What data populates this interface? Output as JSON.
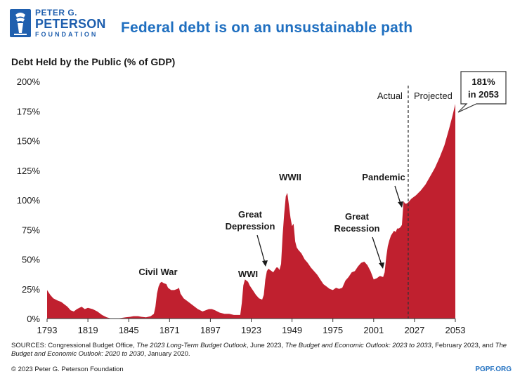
{
  "brand": {
    "line1": "PETER G.",
    "line2": "PETERSON",
    "line3": "FOUNDATION",
    "color": "#1f5fae"
  },
  "title": "Federal debt is on an unsustainable path",
  "chart_data": {
    "type": "area",
    "title": "Federal debt is on an unsustainable path",
    "subtitle": "Debt Held by the Public (% of GDP)",
    "xlabel": "",
    "ylabel": "",
    "xlim": [
      1793,
      2053
    ],
    "ylim": [
      0,
      200
    ],
    "x_ticks": [
      1793,
      1819,
      1845,
      1871,
      1897,
      1923,
      1949,
      1975,
      2001,
      2027,
      2053
    ],
    "y_ticks": [
      0,
      25,
      50,
      75,
      100,
      125,
      150,
      175,
      200
    ],
    "y_tick_labels": [
      "0%",
      "25%",
      "50%",
      "75%",
      "100%",
      "125%",
      "150%",
      "175%",
      "200%"
    ],
    "grid": false,
    "fill_color": "#c0202f",
    "divider_year": 2023,
    "divider_labels": {
      "left": "Actual",
      "right": "Projected"
    },
    "callout": {
      "line1": "181%",
      "line2": "in 2053"
    },
    "series": [
      {
        "values": [
          [
            1793,
            24
          ],
          [
            1795,
            20
          ],
          [
            1797,
            17
          ],
          [
            1800,
            15
          ],
          [
            1802,
            14
          ],
          [
            1804,
            12
          ],
          [
            1806,
            10
          ],
          [
            1808,
            7
          ],
          [
            1810,
            6
          ],
          [
            1812,
            8
          ],
          [
            1815,
            10
          ],
          [
            1817,
            8
          ],
          [
            1819,
            9
          ],
          [
            1822,
            8
          ],
          [
            1825,
            6
          ],
          [
            1828,
            3
          ],
          [
            1831,
            1
          ],
          [
            1834,
            0
          ],
          [
            1837,
            0
          ],
          [
            1840,
            0.5
          ],
          [
            1843,
            1
          ],
          [
            1846,
            1.5
          ],
          [
            1848,
            2
          ],
          [
            1851,
            2
          ],
          [
            1853,
            1.5
          ],
          [
            1856,
            1
          ],
          [
            1859,
            2
          ],
          [
            1861,
            4
          ],
          [
            1862,
            10
          ],
          [
            1863,
            21
          ],
          [
            1864,
            27
          ],
          [
            1865,
            30
          ],
          [
            1866,
            31
          ],
          [
            1867,
            30
          ],
          [
            1869,
            29
          ],
          [
            1870,
            26
          ],
          [
            1872,
            24
          ],
          [
            1874,
            24
          ],
          [
            1876,
            25
          ],
          [
            1877,
            26
          ],
          [
            1878,
            21
          ],
          [
            1880,
            17
          ],
          [
            1883,
            14
          ],
          [
            1886,
            11
          ],
          [
            1889,
            8
          ],
          [
            1892,
            6
          ],
          [
            1894,
            7
          ],
          [
            1896,
            8
          ],
          [
            1898,
            8
          ],
          [
            1900,
            7
          ],
          [
            1903,
            5
          ],
          [
            1906,
            4
          ],
          [
            1909,
            4
          ],
          [
            1912,
            3
          ],
          [
            1915,
            3
          ],
          [
            1916,
            3
          ],
          [
            1917,
            13
          ],
          [
            1918,
            28
          ],
          [
            1919,
            33
          ],
          [
            1920,
            32
          ],
          [
            1921,
            31
          ],
          [
            1922,
            28
          ],
          [
            1923,
            26
          ],
          [
            1924,
            24
          ],
          [
            1926,
            20
          ],
          [
            1928,
            17
          ],
          [
            1930,
            16
          ],
          [
            1931,
            20
          ],
          [
            1932,
            33
          ],
          [
            1933,
            40
          ],
          [
            1934,
            42
          ],
          [
            1935,
            41
          ],
          [
            1936,
            40
          ],
          [
            1937,
            39
          ],
          [
            1938,
            41
          ],
          [
            1939,
            43
          ],
          [
            1940,
            43
          ],
          [
            1941,
            41
          ],
          [
            1942,
            46
          ],
          [
            1943,
            70
          ],
          [
            1944,
            88
          ],
          [
            1945,
            103
          ],
          [
            1946,
            106
          ],
          [
            1947,
            96
          ],
          [
            1948,
            85
          ],
          [
            1949,
            78
          ],
          [
            1950,
            80
          ],
          [
            1951,
            65
          ],
          [
            1952,
            60
          ],
          [
            1953,
            58
          ],
          [
            1955,
            55
          ],
          [
            1957,
            50
          ],
          [
            1959,
            47
          ],
          [
            1961,
            43
          ],
          [
            1963,
            40
          ],
          [
            1965,
            37
          ],
          [
            1967,
            33
          ],
          [
            1969,
            29
          ],
          [
            1971,
            27
          ],
          [
            1973,
            25
          ],
          [
            1975,
            24
          ],
          [
            1977,
            26
          ],
          [
            1979,
            25
          ],
          [
            1981,
            26
          ],
          [
            1983,
            32
          ],
          [
            1985,
            35
          ],
          [
            1987,
            39
          ],
          [
            1989,
            40
          ],
          [
            1991,
            44
          ],
          [
            1993,
            47
          ],
          [
            1995,
            48
          ],
          [
            1997,
            45
          ],
          [
            1999,
            40
          ],
          [
            2001,
            33
          ],
          [
            2003,
            34
          ],
          [
            2005,
            36
          ],
          [
            2007,
            35
          ],
          [
            2008,
            39
          ],
          [
            2009,
            52
          ],
          [
            2010,
            61
          ],
          [
            2011,
            66
          ],
          [
            2012,
            70
          ],
          [
            2013,
            72
          ],
          [
            2014,
            74
          ],
          [
            2015,
            73
          ],
          [
            2016,
            76
          ],
          [
            2017,
            76
          ],
          [
            2018,
            77
          ],
          [
            2019,
            79
          ],
          [
            2020,
            99
          ],
          [
            2021,
            97
          ],
          [
            2022,
            97
          ],
          [
            2023,
            98
          ],
          [
            2025,
            101
          ],
          [
            2028,
            104
          ],
          [
            2031,
            108
          ],
          [
            2034,
            113
          ],
          [
            2037,
            120
          ],
          [
            2040,
            127
          ],
          [
            2043,
            136
          ],
          [
            2046,
            146
          ],
          [
            2049,
            160
          ],
          [
            2051,
            170
          ],
          [
            2053,
            181
          ]
        ]
      }
    ],
    "annotations": [
      {
        "text": "Civil War"
      },
      {
        "text": "WWI"
      },
      {
        "text": "Great\nDepression"
      },
      {
        "text": "WWII"
      },
      {
        "text": "Great\nRecession"
      },
      {
        "text": "Pandemic"
      }
    ]
  },
  "sources": {
    "prefix": "SOURCES: Congressional Budget Office, ",
    "t1": "The 2023 Long-Term Budget Outlook",
    "m1": ", June 2023, ",
    "t2": "The Budget and Economic Outlook: 2023 to 2033",
    "m2": ", February 2023, and ",
    "t3": "The Budget and Economic Outlook: 2020 to 2030",
    "suffix": ", January 2020."
  },
  "footer": {
    "copyright": "© 2023 Peter G. Peterson Foundation",
    "website": "PGPF.ORG"
  }
}
